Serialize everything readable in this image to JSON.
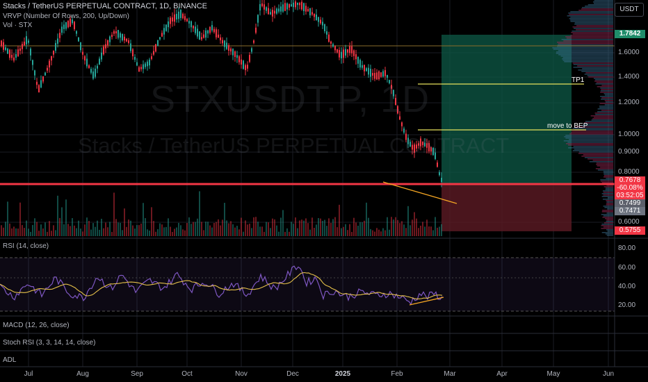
{
  "header": {
    "title": "Stacks / TetherUS PERPETUAL CONTRACT, 1D, BINANCE",
    "indicator_vrvp": "VRVP (Number Of Rows, 200, Up/Down)",
    "indicator_vol": "Vol · STX"
  },
  "currency_button": "USDT",
  "watermark": {
    "symbol": "STXUSDT.P, 1D",
    "name": "Stacks / TetherUS PERPETUAL CONTRACT"
  },
  "annotations": {
    "tp1": "TP1",
    "move_to_bep": "move to BEP"
  },
  "badges": {
    "target": "1.7842",
    "last_price": "0.7678",
    "change": "-60.08%",
    "countdown": "03:52:05",
    "level_a": "0.7499",
    "level_b": "0.7471",
    "stop": "0.5755"
  },
  "price_axis": [
    "1.6000",
    "1.4000",
    "1.2000",
    "1.0000",
    "0.9000",
    "0.8000",
    "0.6000"
  ],
  "rsi_pane": {
    "title": "RSI (14, close)",
    "axis": [
      "80.00",
      "60.00",
      "40.00",
      "20.00"
    ]
  },
  "panes": {
    "macd": "MACD (12, 26, close)",
    "stoch": "Stoch RSI (3, 3, 14, 14, close)",
    "adl": "ADL"
  },
  "time_axis": [
    {
      "label": "Jul",
      "bold": false
    },
    {
      "label": "Aug",
      "bold": false
    },
    {
      "label": "Sep",
      "bold": false
    },
    {
      "label": "Oct",
      "bold": false
    },
    {
      "label": "Nov",
      "bold": false
    },
    {
      "label": "Dec",
      "bold": false
    },
    {
      "label": "2025",
      "bold": true
    },
    {
      "label": "Feb",
      "bold": false
    },
    {
      "label": "Mar",
      "bold": false
    },
    {
      "label": "Apr",
      "bold": false
    },
    {
      "label": "May",
      "bold": false
    },
    {
      "label": "Jun",
      "bold": false
    }
  ],
  "colors": {
    "background": "#000000",
    "up_candle": "#26a69a",
    "down_candle": "#f23645",
    "support_line": "#f23645",
    "rsi_line": "#7e57c2",
    "rsi_ma": "#e6c14a",
    "annotation_line": "#e6e15c",
    "divergence_line": "#f5a623",
    "profit_zone": "#0d5a47",
    "loss_zone": "#5c1a24",
    "target_badge": "#1f8c6a"
  },
  "chart_data": {
    "type": "candlestick",
    "symbol": "STXUSDT.P",
    "timeframe": "1D",
    "price_scale": "log",
    "last_price": 0.7678,
    "change_percent": -60.08,
    "support_level": 0.7678,
    "position": {
      "entry": 0.7678,
      "target": 1.7842,
      "stop": 0.5755,
      "tp1": 1.33,
      "move_to_bep": 1.03
    },
    "rsi": {
      "period": 14,
      "bands": [
        70,
        30
      ],
      "axis_range": [
        10,
        90
      ],
      "last": 34
    }
  }
}
